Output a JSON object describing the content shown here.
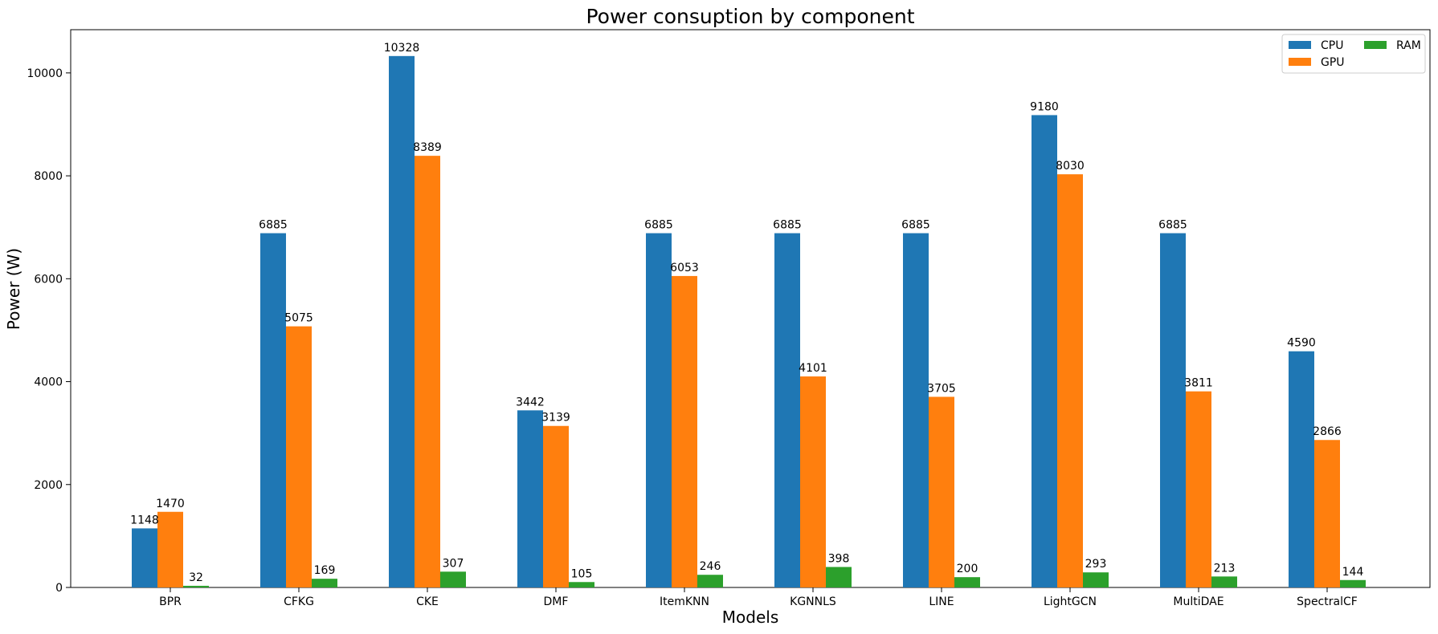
{
  "chart_data": {
    "type": "bar",
    "title": "Power consuption by component",
    "xlabel": "Models",
    "ylabel": "Power (W)",
    "ylim": [
      0,
      10840
    ],
    "yticks": [
      0,
      2000,
      4000,
      6000,
      8000,
      10000
    ],
    "categories": [
      "BPR",
      "CFKG",
      "CKE",
      "DMF",
      "ItemKNN",
      "KGNNLS",
      "LINE",
      "LightGCN",
      "MultiDAE",
      "SpectralCF"
    ],
    "series": [
      {
        "name": "CPU",
        "color": "#1f77b4",
        "values": [
          1148,
          6885,
          10328,
          3442,
          6885,
          6885,
          6885,
          9180,
          6885,
          4590
        ]
      },
      {
        "name": "GPU",
        "color": "#ff7f0e",
        "values": [
          1470,
          5075,
          8389,
          3139,
          6053,
          4101,
          3705,
          8030,
          3811,
          2866
        ]
      },
      {
        "name": "RAM",
        "color": "#2ca02c",
        "values": [
          32,
          169,
          307,
          105,
          246,
          398,
          200,
          293,
          213,
          144
        ]
      }
    ],
    "legend_position": "top-right",
    "grid": false
  }
}
